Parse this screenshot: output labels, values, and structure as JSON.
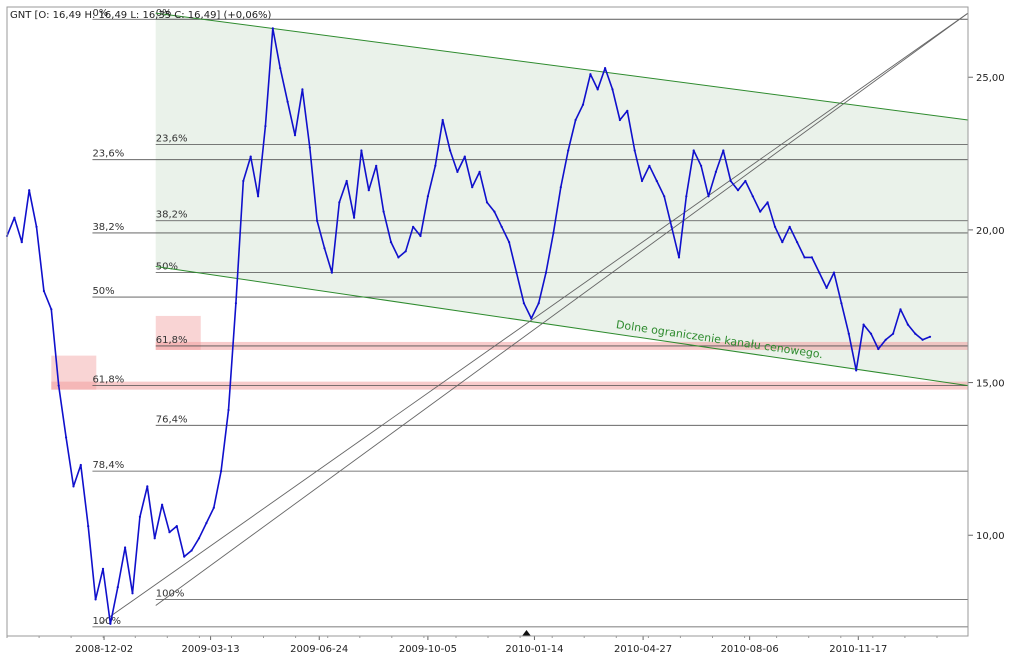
{
  "header": {
    "text": "GNT [O: 16,49  H: 16,49  L: 16,35  C: 16,49] (+0,06%)"
  },
  "chart_data": {
    "type": "line",
    "symbol": "GNT",
    "ohlc": {
      "open": "16,49",
      "high": "16,49",
      "low": "16,35",
      "close": "16,49",
      "change": "+0,06%"
    },
    "x_tick_labels": [
      "2008-12-02",
      "2009-03-13",
      "2009-06-24",
      "2009-10-05",
      "2010-01-14",
      "2010-04-27",
      "2010-08-06",
      "2010-11-17"
    ],
    "x_range": [
      "2008-09-01",
      "2011-03-01"
    ],
    "y_ticks": [
      10,
      15,
      20,
      25
    ],
    "y_tick_labels": [
      "10,00",
      "15,00",
      "20,00",
      "25,00"
    ],
    "y_axis": "right",
    "ylim": [
      6.7,
      27.3
    ],
    "grid": false,
    "colors": {
      "price": "#1010cc",
      "channel": "#2e8b2e",
      "channel_fill": "#e6f0e6",
      "highlight": "#f2a0a0",
      "trend": "#666666",
      "fib": "#505050"
    },
    "series": [
      {
        "values": [
          [
            "2008-09-01",
            19.8
          ],
          [
            "2008-09-08",
            20.4
          ],
          [
            "2008-09-15",
            19.6
          ],
          [
            "2008-09-22",
            21.3
          ],
          [
            "2008-09-29",
            20.1
          ],
          [
            "2008-10-06",
            18.0
          ],
          [
            "2008-10-13",
            17.4
          ],
          [
            "2008-10-20",
            14.9
          ],
          [
            "2008-10-27",
            13.2
          ],
          [
            "2008-11-03",
            11.6
          ],
          [
            "2008-11-10",
            12.3
          ],
          [
            "2008-11-17",
            10.3
          ],
          [
            "2008-11-24",
            7.9
          ],
          [
            "2008-12-01",
            8.9
          ],
          [
            "2008-12-08",
            7.1
          ],
          [
            "2008-12-15",
            8.3
          ],
          [
            "2008-12-22",
            9.6
          ],
          [
            "2008-12-29",
            8.1
          ],
          [
            "2009-01-05",
            10.6
          ],
          [
            "2009-01-12",
            11.6
          ],
          [
            "2009-01-19",
            9.9
          ],
          [
            "2009-01-26",
            11.0
          ],
          [
            "2009-02-02",
            10.1
          ],
          [
            "2009-02-09",
            10.3
          ],
          [
            "2009-02-16",
            9.3
          ],
          [
            "2009-02-23",
            9.5
          ],
          [
            "2009-03-02",
            9.9
          ],
          [
            "2009-03-09",
            10.4
          ],
          [
            "2009-03-16",
            10.9
          ],
          [
            "2009-03-23",
            12.1
          ],
          [
            "2009-03-30",
            14.1
          ],
          [
            "2009-04-06",
            17.6
          ],
          [
            "2009-04-13",
            21.6
          ],
          [
            "2009-04-20",
            22.4
          ],
          [
            "2009-04-27",
            21.1
          ],
          [
            "2009-05-04",
            23.4
          ],
          [
            "2009-05-11",
            26.6
          ],
          [
            "2009-05-18",
            25.3
          ],
          [
            "2009-05-25",
            24.2
          ],
          [
            "2009-06-01",
            23.1
          ],
          [
            "2009-06-08",
            24.6
          ],
          [
            "2009-06-15",
            22.7
          ],
          [
            "2009-06-22",
            20.3
          ],
          [
            "2009-06-29",
            19.4
          ],
          [
            "2009-07-06",
            18.6
          ],
          [
            "2009-07-13",
            20.9
          ],
          [
            "2009-07-20",
            21.6
          ],
          [
            "2009-07-27",
            20.4
          ],
          [
            "2009-08-03",
            22.6
          ],
          [
            "2009-08-10",
            21.3
          ],
          [
            "2009-08-17",
            22.1
          ],
          [
            "2009-08-24",
            20.6
          ],
          [
            "2009-08-31",
            19.6
          ],
          [
            "2009-09-07",
            19.1
          ],
          [
            "2009-09-14",
            19.3
          ],
          [
            "2009-09-21",
            20.1
          ],
          [
            "2009-09-28",
            19.8
          ],
          [
            "2009-10-05",
            21.1
          ],
          [
            "2009-10-12",
            22.1
          ],
          [
            "2009-10-19",
            23.6
          ],
          [
            "2009-10-26",
            22.6
          ],
          [
            "2009-11-02",
            21.9
          ],
          [
            "2009-11-09",
            22.4
          ],
          [
            "2009-11-16",
            21.4
          ],
          [
            "2009-11-23",
            21.9
          ],
          [
            "2009-11-30",
            20.9
          ],
          [
            "2009-12-07",
            20.6
          ],
          [
            "2009-12-14",
            20.1
          ],
          [
            "2009-12-21",
            19.6
          ],
          [
            "2009-12-28",
            18.6
          ],
          [
            "2010-01-04",
            17.6
          ],
          [
            "2010-01-11",
            17.1
          ],
          [
            "2010-01-18",
            17.6
          ],
          [
            "2010-01-25",
            18.6
          ],
          [
            "2010-02-01",
            19.9
          ],
          [
            "2010-02-08",
            21.4
          ],
          [
            "2010-02-15",
            22.6
          ],
          [
            "2010-02-22",
            23.6
          ],
          [
            "2010-03-01",
            24.1
          ],
          [
            "2010-03-08",
            25.1
          ],
          [
            "2010-03-15",
            24.6
          ],
          [
            "2010-03-22",
            25.3
          ],
          [
            "2010-03-29",
            24.6
          ],
          [
            "2010-04-05",
            23.6
          ],
          [
            "2010-04-12",
            23.9
          ],
          [
            "2010-04-19",
            22.6
          ],
          [
            "2010-04-26",
            21.6
          ],
          [
            "2010-05-03",
            22.1
          ],
          [
            "2010-05-10",
            21.6
          ],
          [
            "2010-05-17",
            21.1
          ],
          [
            "2010-05-24",
            20.1
          ],
          [
            "2010-05-31",
            19.1
          ],
          [
            "2010-06-07",
            21.1
          ],
          [
            "2010-06-14",
            22.6
          ],
          [
            "2010-06-21",
            22.1
          ],
          [
            "2010-06-28",
            21.1
          ],
          [
            "2010-07-05",
            21.9
          ],
          [
            "2010-07-12",
            22.6
          ],
          [
            "2010-07-19",
            21.6
          ],
          [
            "2010-07-26",
            21.3
          ],
          [
            "2010-08-02",
            21.6
          ],
          [
            "2010-08-09",
            21.1
          ],
          [
            "2010-08-16",
            20.6
          ],
          [
            "2010-08-23",
            20.9
          ],
          [
            "2010-08-30",
            20.1
          ],
          [
            "2010-09-06",
            19.6
          ],
          [
            "2010-09-13",
            20.1
          ],
          [
            "2010-09-20",
            19.6
          ],
          [
            "2010-09-27",
            19.1
          ],
          [
            "2010-10-04",
            19.1
          ],
          [
            "2010-10-11",
            18.6
          ],
          [
            "2010-10-18",
            18.1
          ],
          [
            "2010-10-25",
            18.6
          ],
          [
            "2010-11-01",
            17.6
          ],
          [
            "2010-11-08",
            16.6
          ],
          [
            "2010-11-15",
            15.4
          ],
          [
            "2010-11-22",
            16.9
          ],
          [
            "2010-11-29",
            16.6
          ],
          [
            "2010-12-06",
            16.1
          ],
          [
            "2010-12-13",
            16.4
          ],
          [
            "2010-12-20",
            16.6
          ],
          [
            "2010-12-27",
            17.4
          ],
          [
            "2011-01-03",
            16.9
          ],
          [
            "2011-01-10",
            16.6
          ],
          [
            "2011-01-17",
            16.4
          ],
          [
            "2011-01-24",
            16.5
          ]
        ]
      }
    ],
    "channel": {
      "upper": [
        [
          "2009-01-20",
          27.1
        ],
        [
          "2011-03-01",
          23.6
        ]
      ],
      "lower": [
        [
          "2009-01-20",
          18.8
        ],
        [
          "2011-03-01",
          14.9
        ]
      ],
      "label": "Dolne ograniczenie kanału cenowego."
    },
    "trend_lines": [
      [
        [
          "2008-11-28",
          7.1
        ],
        [
          "2011-03-01",
          27.1
        ]
      ],
      [
        [
          "2009-01-20",
          7.7
        ],
        [
          "2011-03-01",
          27.1
        ]
      ]
    ],
    "fibonacci_sets": [
      {
        "start": "2008-11-21",
        "levels": [
          {
            "label": "0%",
            "value": 26.9
          },
          {
            "label": "23,6%",
            "value": 22.3
          },
          {
            "label": "38,2%",
            "value": 19.9
          },
          {
            "label": "50%",
            "value": 17.8
          },
          {
            "label": "61,8%",
            "value": 14.9
          },
          {
            "label": "78,4%",
            "value": 12.1
          },
          {
            "label": "100%",
            "value": 7.0
          }
        ]
      },
      {
        "start": "2009-01-20",
        "levels": [
          {
            "label": "0%",
            "value": 26.9
          },
          {
            "label": "23,6%",
            "value": 22.8
          },
          {
            "label": "38,2%",
            "value": 20.3
          },
          {
            "label": "50%",
            "value": 18.6
          },
          {
            "label": "61,8%",
            "value": 16.2
          },
          {
            "label": "76,4%",
            "value": 13.6
          },
          {
            "label": "100%",
            "value": 7.9
          }
        ]
      }
    ],
    "highlight_zones": [
      {
        "from": "2008-10-13",
        "to": "2011-03-01",
        "value": 14.9
      },
      {
        "from": "2009-01-20",
        "to": "2011-03-01",
        "value": 16.2
      }
    ]
  }
}
